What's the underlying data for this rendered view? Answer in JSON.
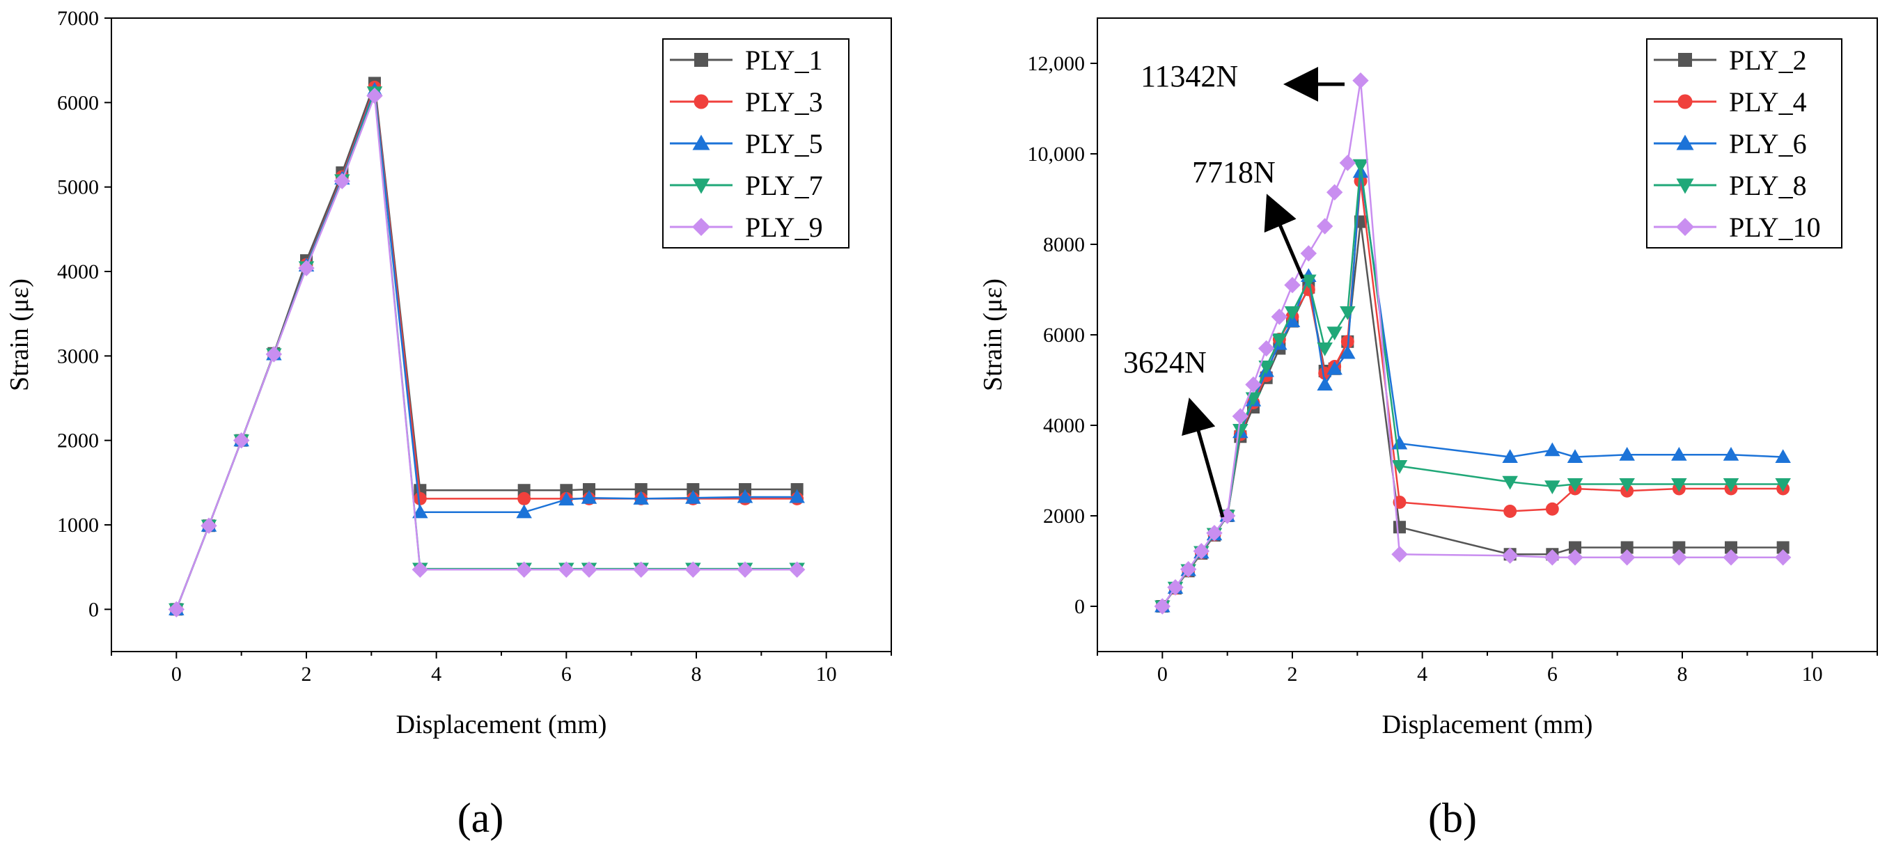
{
  "charts": [
    {
      "id": "a",
      "panel_label": "(a)",
      "xlabel": "Displacement (mm)",
      "ylabel": "Strain (με)"
    },
    {
      "id": "b",
      "panel_label": "(b)",
      "xlabel": "Displacement (mm)",
      "ylabel": "Strain (με)"
    }
  ],
  "chart_data": [
    {
      "type": "line",
      "panel_label": "(a)",
      "title": "",
      "xlabel": "Displacement (mm)",
      "ylabel": "Strain (με)",
      "xlim": [
        -1,
        11
      ],
      "ylim": [
        -500,
        7000
      ],
      "xticks": [
        0,
        2,
        4,
        6,
        8,
        10
      ],
      "yticks": [
        0,
        1000,
        2000,
        3000,
        4000,
        5000,
        6000,
        7000
      ],
      "ytick_labels": [
        "0",
        "1000",
        "2000",
        "3000",
        "4000",
        "5000",
        "6000",
        "7000"
      ],
      "grid": false,
      "legend_position": "top-right",
      "series": [
        {
          "name": "PLY_1",
          "color": "#555555",
          "marker": "square",
          "x": [
            0,
            0.5,
            1,
            1.5,
            2,
            2.55,
            3.05,
            3.75,
            5.35,
            6,
            6.35,
            7.15,
            7.95,
            8.75,
            9.55
          ],
          "y": [
            0,
            990,
            2000,
            3030,
            4130,
            5170,
            6230,
            1410,
            1410,
            1410,
            1420,
            1420,
            1420,
            1420,
            1420
          ]
        },
        {
          "name": "PLY_3",
          "color": "#f0403c",
          "marker": "circle",
          "x": [
            0,
            0.5,
            1,
            1.5,
            2,
            2.55,
            3.05,
            3.75,
            5.35,
            6,
            6.35,
            7.15,
            7.95,
            8.75,
            9.55
          ],
          "y": [
            0,
            990,
            2000,
            3020,
            4080,
            5120,
            6180,
            1310,
            1310,
            1310,
            1310,
            1310,
            1310,
            1310,
            1310
          ]
        },
        {
          "name": "PLY_5",
          "color": "#1c73d8",
          "marker": "triangle-up",
          "x": [
            0,
            0.5,
            1,
            1.5,
            2,
            2.55,
            3.05,
            3.75,
            5.35,
            6,
            6.35,
            7.15,
            7.95,
            8.75,
            9.55
          ],
          "y": [
            0,
            990,
            2000,
            3020,
            4070,
            5100,
            6150,
            1150,
            1150,
            1300,
            1320,
            1310,
            1320,
            1330,
            1330
          ]
        },
        {
          "name": "PLY_7",
          "color": "#20a878",
          "marker": "triangle-down",
          "x": [
            0,
            0.5,
            1,
            1.5,
            2,
            2.55,
            3.05,
            3.75,
            5.35,
            6,
            6.35,
            7.15,
            7.95,
            8.75,
            9.55
          ],
          "y": [
            0,
            990,
            2000,
            3020,
            4050,
            5080,
            6120,
            480,
            480,
            480,
            480,
            480,
            480,
            480,
            480
          ]
        },
        {
          "name": "PLY_9",
          "color": "#c98ef0",
          "marker": "diamond",
          "x": [
            0,
            0.5,
            1,
            1.5,
            2,
            2.55,
            3.05,
            3.75,
            5.35,
            6,
            6.35,
            7.15,
            7.95,
            8.75,
            9.55
          ],
          "y": [
            0,
            990,
            2000,
            3020,
            4040,
            5070,
            6080,
            470,
            470,
            470,
            470,
            470,
            470,
            470,
            470
          ]
        }
      ]
    },
    {
      "type": "line",
      "panel_label": "(b)",
      "title": "",
      "xlabel": "Displacement (mm)",
      "ylabel": "Strain (με)",
      "xlim": [
        -1,
        11
      ],
      "ylim": [
        -1000,
        13000
      ],
      "xticks": [
        0,
        2,
        4,
        6,
        8,
        10
      ],
      "yticks": [
        0,
        2000,
        4000,
        6000,
        8000,
        10000,
        12000
      ],
      "ytick_labels": [
        "0",
        "2000",
        "4000",
        "6000",
        "8000",
        "10,000",
        "12,000"
      ],
      "grid": false,
      "legend_position": "top-right",
      "annotations": [
        {
          "text": "11342N",
          "points_to": [
            3.05,
            11620
          ]
        },
        {
          "text": "7718N",
          "points_to": [
            2.25,
            7100
          ]
        },
        {
          "text": "3624N",
          "points_to": [
            1.0,
            2000
          ]
        }
      ],
      "series": [
        {
          "name": "PLY_2",
          "color": "#555555",
          "marker": "square",
          "x": [
            0,
            0.2,
            0.4,
            0.6,
            0.8,
            1.0,
            1.2,
            1.4,
            1.6,
            1.8,
            2.0,
            2.25,
            2.5,
            2.65,
            2.85,
            3.05,
            3.65,
            5.35,
            6,
            6.35,
            7.15,
            7.95,
            8.75,
            9.55
          ],
          "y": [
            0,
            400,
            780,
            1170,
            1570,
            2000,
            3750,
            4400,
            5050,
            5700,
            6300,
            7050,
            5200,
            5250,
            5850,
            8500,
            1750,
            1150,
            1150,
            1300,
            1300,
            1300,
            1300,
            1300
          ]
        },
        {
          "name": "PLY_4",
          "color": "#f0403c",
          "marker": "circle",
          "x": [
            0,
            0.2,
            0.4,
            0.6,
            0.8,
            1.0,
            1.2,
            1.4,
            1.6,
            1.8,
            2.0,
            2.25,
            2.5,
            2.65,
            2.85,
            3.05,
            3.65,
            5.35,
            6,
            6.35,
            7.15,
            7.95,
            8.75,
            9.55
          ],
          "y": [
            0,
            400,
            790,
            1180,
            1580,
            2000,
            3800,
            4500,
            5100,
            5900,
            6400,
            7000,
            5150,
            5300,
            5850,
            9400,
            2300,
            2100,
            2150,
            2600,
            2550,
            2600,
            2600,
            2600
          ]
        },
        {
          "name": "PLY_6",
          "color": "#1c73d8",
          "marker": "triangle-up",
          "x": [
            0,
            0.2,
            0.4,
            0.6,
            0.8,
            1.0,
            1.2,
            1.4,
            1.6,
            1.8,
            2.0,
            2.25,
            2.5,
            2.65,
            2.85,
            3.05,
            3.65,
            5.35,
            6,
            6.35,
            7.15,
            7.95,
            8.75,
            9.55
          ],
          "y": [
            0,
            410,
            800,
            1190,
            1590,
            2000,
            3850,
            4550,
            5200,
            5800,
            6300,
            7300,
            4900,
            5250,
            5600,
            9600,
            3600,
            3300,
            3450,
            3300,
            3350,
            3350,
            3350,
            3300
          ]
        },
        {
          "name": "PLY_8",
          "color": "#20a878",
          "marker": "triangle-down",
          "x": [
            0,
            0.2,
            0.4,
            0.6,
            0.8,
            1.0,
            1.2,
            1.4,
            1.6,
            1.8,
            2.0,
            2.25,
            2.5,
            2.65,
            2.85,
            3.05,
            3.65,
            5.35,
            6,
            6.35,
            7.15,
            7.95,
            8.75,
            9.55
          ],
          "y": [
            0,
            410,
            800,
            1200,
            1600,
            2000,
            3900,
            4600,
            5300,
            5900,
            6500,
            7200,
            5700,
            6050,
            6500,
            9750,
            3100,
            2750,
            2650,
            2700,
            2700,
            2700,
            2700,
            2700
          ]
        },
        {
          "name": "PLY_10",
          "color": "#c98ef0",
          "marker": "diamond",
          "x": [
            0,
            0.2,
            0.4,
            0.6,
            0.8,
            1.0,
            1.2,
            1.4,
            1.6,
            1.8,
            2.0,
            2.25,
            2.5,
            2.65,
            2.85,
            3.05,
            3.65,
            5.35,
            6,
            6.35,
            7.15,
            7.95,
            8.75,
            9.55
          ],
          "y": [
            0,
            420,
            820,
            1220,
            1620,
            2000,
            4200,
            4900,
            5700,
            6400,
            7100,
            7800,
            8400,
            9150,
            9800,
            11620,
            1150,
            1120,
            1080,
            1080,
            1080,
            1080,
            1080,
            1080
          ]
        }
      ]
    }
  ]
}
